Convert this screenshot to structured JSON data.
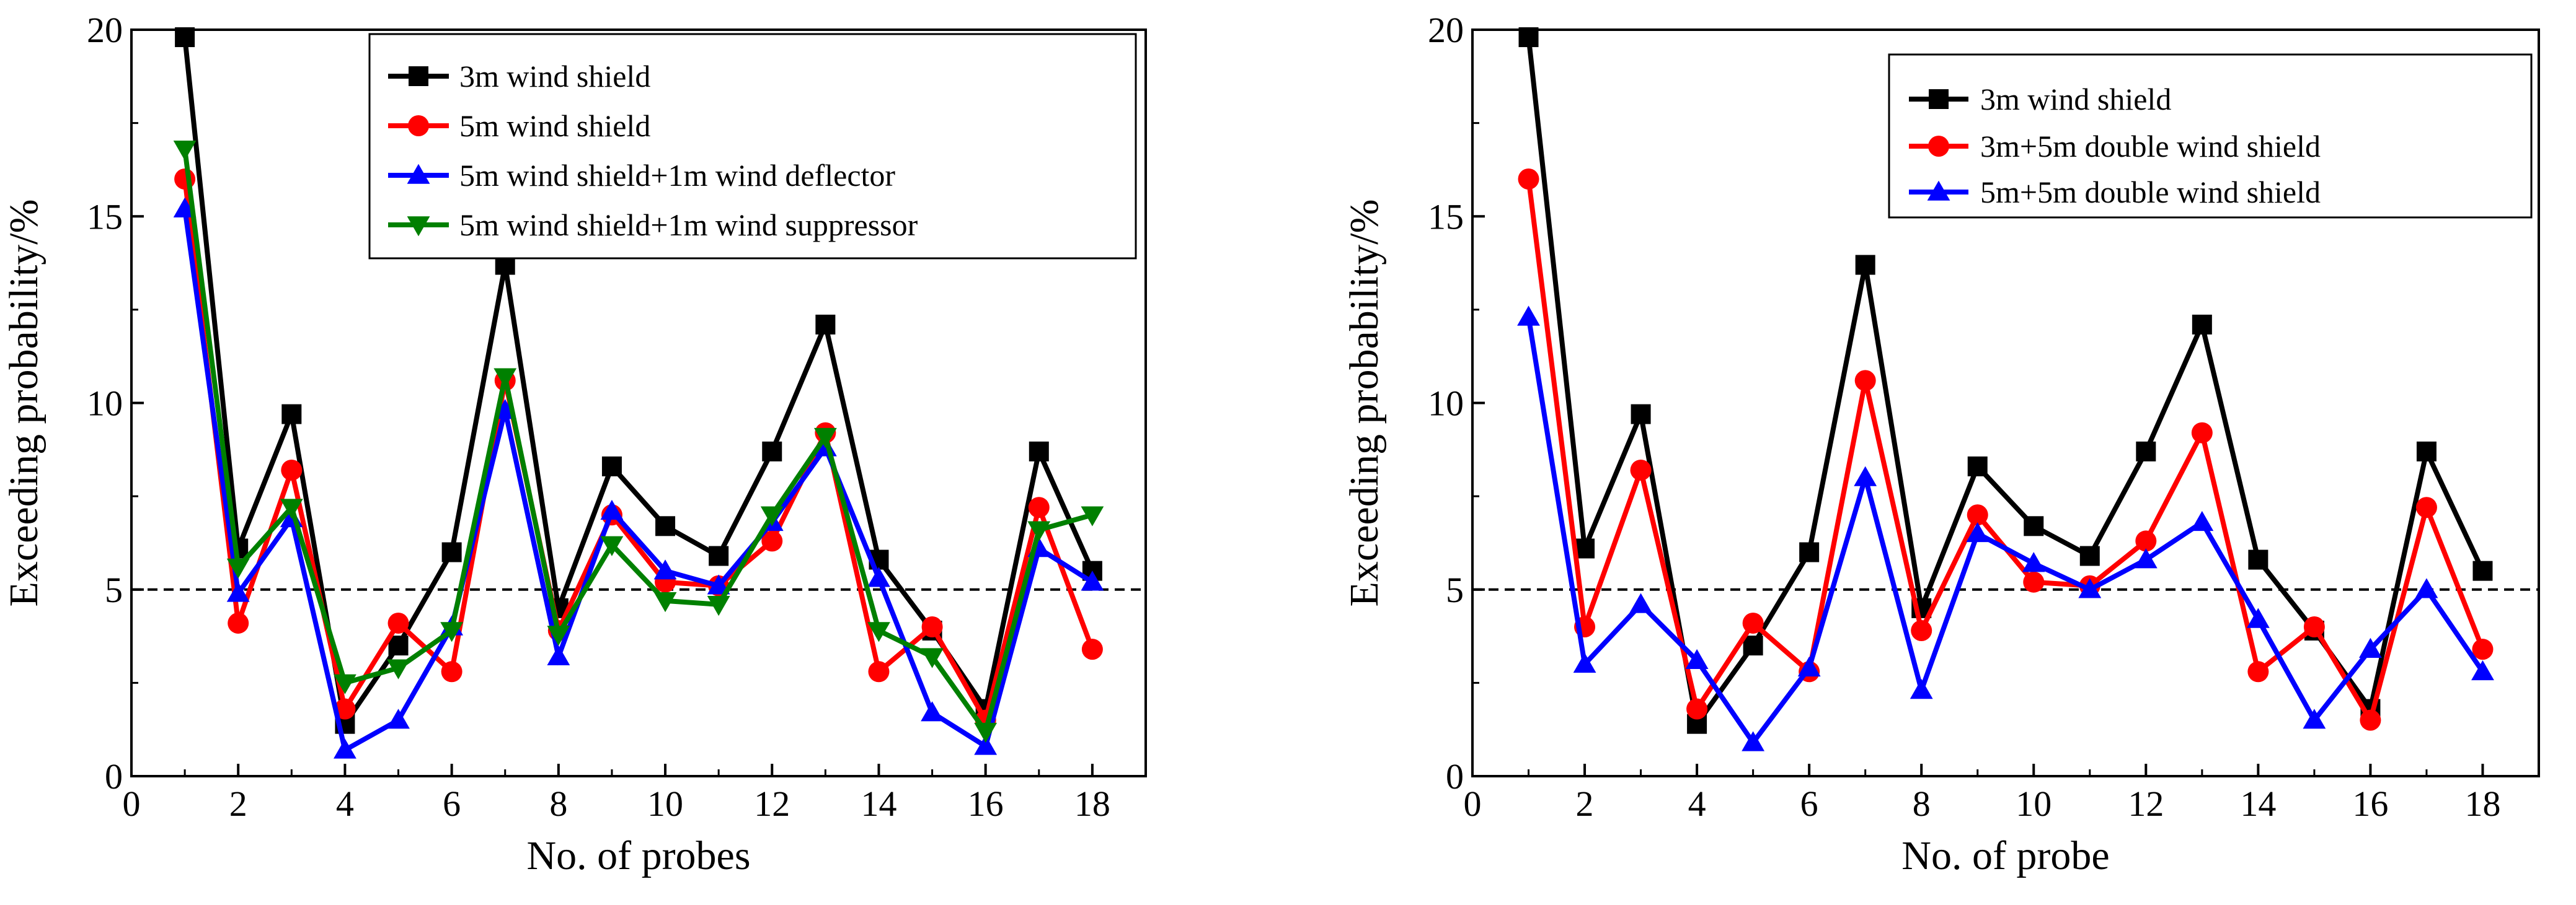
{
  "chart_data": [
    {
      "type": "line",
      "title": "",
      "xlabel": "No. of probes",
      "ylabel": "Exceeding probability/%",
      "xlim": [
        0,
        19
      ],
      "ylim": [
        0,
        20
      ],
      "xticks": [
        0,
        2,
        4,
        6,
        8,
        10,
        12,
        14,
        16,
        18
      ],
      "yticks": [
        0,
        5,
        10,
        15,
        20
      ],
      "reference_line": {
        "y": 5,
        "style": "dashed"
      },
      "legend_position": "top-right",
      "x": [
        1,
        2,
        3,
        4,
        5,
        6,
        7,
        8,
        9,
        10,
        11,
        12,
        13,
        14,
        15,
        16,
        17,
        18
      ],
      "series": [
        {
          "name": "3m wind shield",
          "color": "#000000",
          "marker": "square",
          "values": [
            19.8,
            6.1,
            9.7,
            1.4,
            3.5,
            6.0,
            13.7,
            4.5,
            8.3,
            6.7,
            5.9,
            8.7,
            12.1,
            5.8,
            3.9,
            1.8,
            8.7,
            5.5
          ]
        },
        {
          "name": "5m wind shield",
          "color": "#ff0000",
          "marker": "circle",
          "values": [
            16.0,
            4.1,
            8.2,
            1.8,
            4.1,
            2.8,
            10.6,
            3.9,
            7.0,
            5.2,
            5.1,
            6.3,
            9.2,
            2.8,
            4.0,
            1.5,
            7.2,
            3.4
          ]
        },
        {
          "name": "5m wind shield+1m wind deflector",
          "color": "#0000ff",
          "marker": "triangle-up",
          "values": [
            15.2,
            4.9,
            6.9,
            0.7,
            1.5,
            4.0,
            9.8,
            3.2,
            7.1,
            5.5,
            5.1,
            6.8,
            8.8,
            5.3,
            1.7,
            0.8,
            6.1,
            5.2
          ]
        },
        {
          "name": "5m wind shield+1m wind suppressor",
          "color": "#008000",
          "marker": "triangle-down",
          "values": [
            16.8,
            5.6,
            7.2,
            2.5,
            2.9,
            3.9,
            10.7,
            3.8,
            6.2,
            4.7,
            4.6,
            7.0,
            9.1,
            3.9,
            3.2,
            1.2,
            6.6,
            7.0
          ]
        }
      ]
    },
    {
      "type": "line",
      "title": "",
      "xlabel": "No. of probe",
      "ylabel": "Exceeding probability/%",
      "xlim": [
        0,
        19
      ],
      "ylim": [
        0,
        20
      ],
      "xticks": [
        0,
        2,
        4,
        6,
        8,
        10,
        12,
        14,
        16,
        18
      ],
      "yticks": [
        0,
        5,
        10,
        15,
        20
      ],
      "reference_line": {
        "y": 5,
        "style": "dashed"
      },
      "legend_position": "top-right",
      "x": [
        1,
        2,
        3,
        4,
        5,
        6,
        7,
        8,
        9,
        10,
        11,
        12,
        13,
        14,
        15,
        16,
        17,
        18
      ],
      "series": [
        {
          "name": "3m wind shield",
          "color": "#000000",
          "marker": "square",
          "values": [
            19.8,
            6.1,
            9.7,
            1.4,
            3.5,
            6.0,
            13.7,
            4.5,
            8.3,
            6.7,
            5.9,
            8.7,
            12.1,
            5.8,
            3.9,
            1.8,
            8.7,
            5.5
          ]
        },
        {
          "name": "3m+5m double wind shield",
          "color": "#ff0000",
          "marker": "circle",
          "values": [
            16.0,
            4.0,
            8.2,
            1.8,
            4.1,
            2.8,
            10.6,
            3.9,
            7.0,
            5.2,
            5.1,
            6.3,
            9.2,
            2.8,
            4.0,
            1.5,
            7.2,
            3.4
          ]
        },
        {
          "name": "5m+5m double wind shield",
          "color": "#0000ff",
          "marker": "triangle-up",
          "values": [
            12.3,
            3.0,
            4.6,
            3.1,
            0.9,
            2.9,
            8.0,
            2.3,
            6.5,
            5.7,
            5.0,
            5.8,
            6.8,
            4.2,
            1.5,
            3.4,
            5.0,
            2.8
          ]
        }
      ]
    }
  ]
}
